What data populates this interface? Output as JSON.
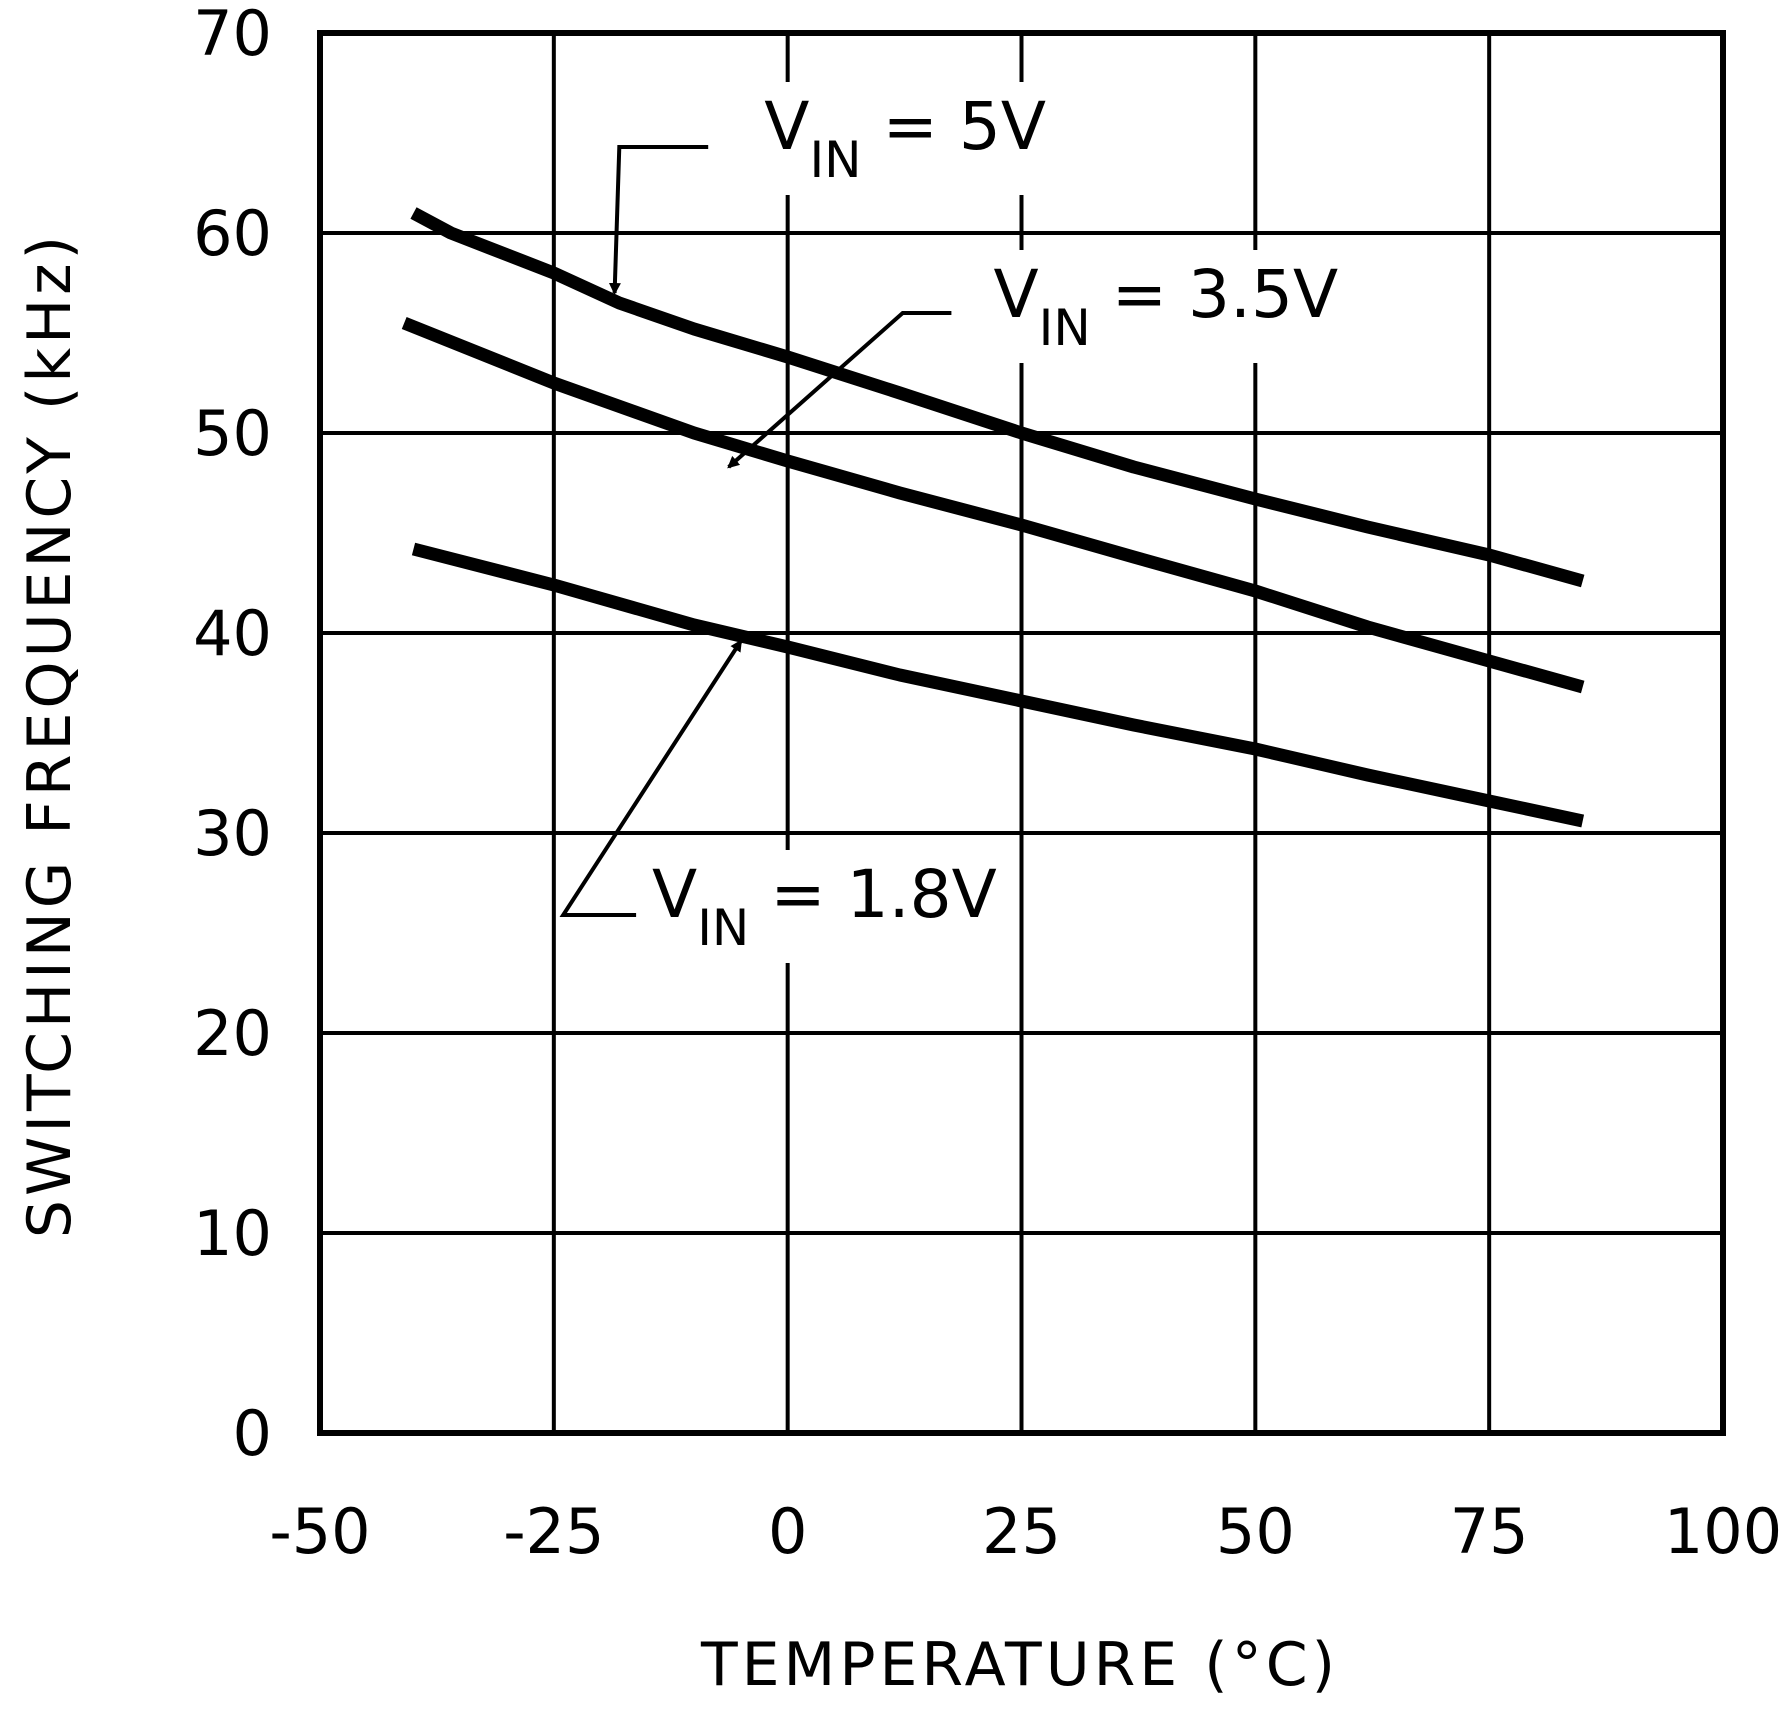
{
  "chart_data": {
    "type": "line",
    "title": "",
    "xlabel": "TEMPERATURE (°C)",
    "ylabel": "SWITCHING FREQUENCY (kHz)",
    "xlim": [
      -50,
      100
    ],
    "ylim": [
      0,
      70
    ],
    "xticks": [
      -50,
      -25,
      0,
      25,
      50,
      75,
      100
    ],
    "yticks": [
      0,
      10,
      20,
      30,
      40,
      50,
      60,
      70
    ],
    "xtick_labels": [
      "-50",
      "-25",
      "0",
      "25",
      "50",
      "75",
      "100"
    ],
    "ytick_labels": [
      "0",
      "10",
      "20",
      "30",
      "40",
      "50",
      "60",
      "70"
    ],
    "grid": true,
    "legend": "none",
    "series": [
      {
        "name": "VIN = 5V",
        "x": [
          -40,
          -36,
          -25,
          -18,
          -10,
          0,
          12,
          25,
          37,
          50,
          62,
          75,
          85
        ],
        "y": [
          61,
          60,
          58,
          56.5,
          55.2,
          53.8,
          52,
          50,
          48.3,
          46.7,
          45.3,
          43.9,
          42.6
        ]
      },
      {
        "name": "VIN = 3.5V",
        "x": [
          -41,
          -25,
          -10,
          0,
          12,
          25,
          37,
          50,
          62,
          75,
          85
        ],
        "y": [
          55.5,
          52.5,
          50,
          48.6,
          47,
          45.4,
          43.8,
          42.1,
          40.3,
          38.6,
          37.3
        ]
      },
      {
        "name": "VIN = 1.8V",
        "x": [
          -40,
          -25,
          -10,
          0,
          12,
          25,
          37,
          50,
          62,
          75,
          85
        ],
        "y": [
          44.2,
          42.4,
          40.4,
          39.3,
          37.9,
          36.6,
          35.4,
          34.2,
          32.9,
          31.6,
          30.6
        ]
      }
    ],
    "annotations": [
      {
        "label_main": "V",
        "label_sub": "IN",
        "label_tail": " = 5V",
        "target_series": "VIN = 5V"
      },
      {
        "label_main": "V",
        "label_sub": "IN",
        "label_tail": " = 3.5V",
        "target_series": "VIN = 3.5V"
      },
      {
        "label_main": "V",
        "label_sub": "IN",
        "label_tail": " = 1.8V",
        "target_series": "VIN = 1.8V"
      }
    ]
  }
}
